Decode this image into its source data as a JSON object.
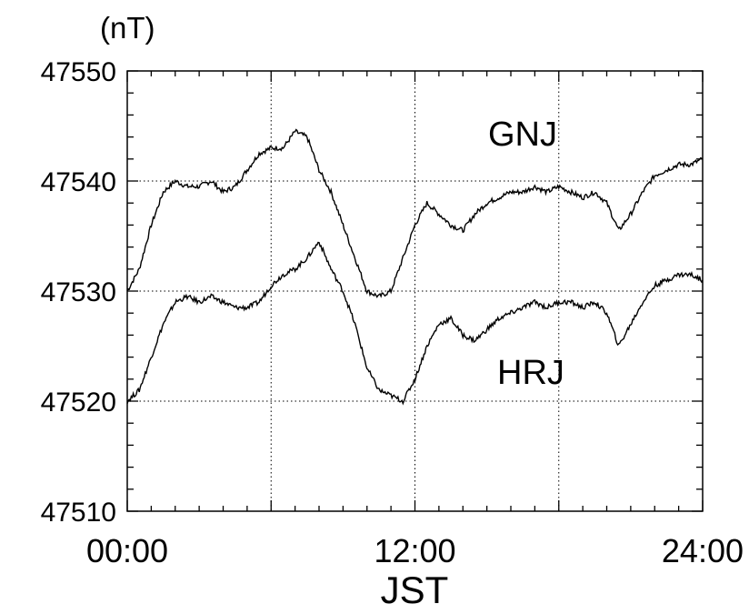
{
  "chart_data": {
    "type": "line",
    "title": "",
    "ylabel": "(nT)",
    "xlabel": "JST",
    "ylim": [
      47510,
      47550
    ],
    "xlim": [
      0,
      24
    ],
    "yticks": [
      {
        "value": 47550,
        "label": "47550"
      },
      {
        "value": 47540,
        "label": "47540"
      },
      {
        "value": 47530,
        "label": "47530"
      },
      {
        "value": 47520,
        "label": "47520"
      },
      {
        "value": 47510,
        "label": "47510"
      }
    ],
    "xticks": [
      {
        "value": 0,
        "label": "00:00"
      },
      {
        "value": 12,
        "label": "12:00"
      },
      {
        "value": 24,
        "label": "24:00"
      }
    ],
    "grid": true,
    "series": [
      {
        "name": "GNJ",
        "x": [
          0,
          0.5,
          1,
          1.5,
          2,
          2.5,
          3,
          3.5,
          4,
          4.5,
          5,
          5.5,
          6,
          6.5,
          7,
          7.5,
          8,
          8.5,
          9,
          9.5,
          10,
          10.5,
          11,
          11.5,
          12,
          12.5,
          13,
          13.5,
          14,
          14.5,
          15,
          15.5,
          16,
          16.5,
          17,
          17.5,
          18,
          18.5,
          19,
          19.5,
          20,
          20.5,
          21,
          21.5,
          22,
          22.5,
          23,
          23.5,
          24
        ],
        "values": [
          47530,
          47532,
          47536,
          47539,
          47540,
          47539.5,
          47539.5,
          47540,
          47539,
          47539.5,
          47541,
          47542.5,
          47543,
          47543,
          47544.5,
          47544,
          47541,
          47539,
          47536,
          47533,
          47530,
          47529.5,
          47530,
          47533,
          47536,
          47538,
          47537,
          47536,
          47535.5,
          47537,
          47538,
          47538.5,
          47539,
          47539,
          47539.5,
          47539,
          47539.5,
          47539,
          47538.5,
          47539,
          47538,
          47535.5,
          47537,
          47539,
          47540.5,
          47541,
          47541.5,
          47541.5,
          47542
        ]
      },
      {
        "name": "HRJ",
        "x": [
          0,
          0.5,
          1,
          1.5,
          2,
          2.5,
          3,
          3.5,
          4,
          4.5,
          5,
          5.5,
          6,
          6.5,
          7,
          7.5,
          8,
          8.5,
          9,
          9.5,
          10,
          10.5,
          11,
          11.5,
          12,
          12.5,
          13,
          13.5,
          14,
          14.5,
          15,
          15.5,
          16,
          16.5,
          17,
          17.5,
          18,
          18.5,
          19,
          19.5,
          20,
          20.5,
          21,
          21.5,
          22,
          22.5,
          23,
          23.5,
          24
        ],
        "values": [
          47520,
          47521,
          47524,
          47527,
          47529,
          47529.5,
          47529,
          47529.5,
          47529,
          47528.5,
          47528.5,
          47529,
          47530.5,
          47531.5,
          47532,
          47533,
          47534.5,
          47532,
          47530,
          47527,
          47523,
          47521,
          47520.5,
          47520,
          47522,
          47525,
          47527,
          47527.5,
          47526,
          47525.5,
          47526.5,
          47527.5,
          47528,
          47528.5,
          47529,
          47528.5,
          47529,
          47529,
          47528.5,
          47529,
          47528,
          47525,
          47527,
          47529,
          47530.5,
          47531,
          47531.5,
          47531.5,
          47531
        ]
      }
    ]
  }
}
